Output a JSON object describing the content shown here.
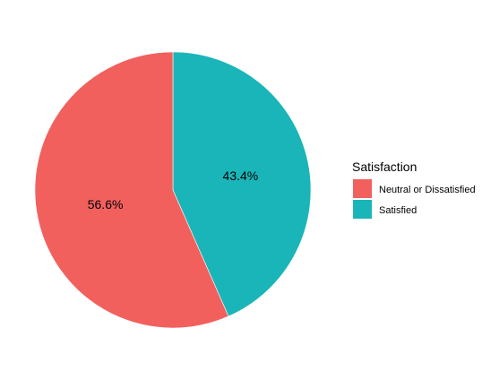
{
  "chart_data": {
    "type": "pie",
    "legend": {
      "title": "Satisfaction",
      "placement": "right"
    },
    "slices": [
      {
        "name": "Satisfied",
        "value": 43.4,
        "label": "43.4%",
        "color": "#1AB5B8"
      },
      {
        "name": "Neutral or Dissatisfied",
        "value": 56.6,
        "label": "56.6%",
        "color": "#F2605E"
      }
    ],
    "legend_order": [
      "Neutral or Dissatisfied",
      "Satisfied"
    ]
  }
}
